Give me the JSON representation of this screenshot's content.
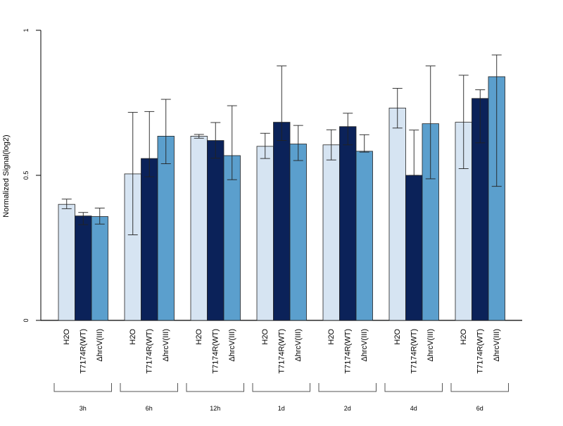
{
  "chart_data": {
    "type": "bar",
    "ylabel": "Normalized Signal(log2)",
    "ylim": [
      0,
      1
    ],
    "yticks": [
      {
        "value": 0,
        "label": "0"
      },
      {
        "value": 0.5,
        "label": "0.5"
      },
      {
        "value": 1,
        "label": "1"
      }
    ],
    "groups": [
      "3h",
      "6h",
      "12h",
      "1d",
      "2d",
      "4d",
      "6d"
    ],
    "series_labels": [
      "H2O",
      "T7174R(WT)",
      "ΔhrcV(III)"
    ],
    "colors": [
      "#d6e4f2",
      "#0b2259",
      "#5b9fcd"
    ],
    "series": [
      {
        "values": [
          0.4,
          0.505,
          0.635,
          0.6,
          0.605,
          0.732,
          0.683
        ],
        "err_low": [
          0.385,
          0.295,
          0.628,
          0.558,
          0.553,
          0.663,
          0.523
        ],
        "err_high": [
          0.418,
          0.717,
          0.641,
          0.645,
          0.657,
          0.8,
          0.845
        ]
      },
      {
        "values": [
          0.36,
          0.558,
          0.62,
          0.683,
          0.668,
          0.5,
          0.765
        ],
        "err_low": [
          0.33,
          0.495,
          0.559,
          0.62,
          0.605,
          0.5,
          0.612
        ],
        "err_high": [
          0.372,
          0.72,
          0.682,
          0.877,
          0.714,
          0.656,
          0.795
        ]
      },
      {
        "values": [
          0.358,
          0.635,
          0.568,
          0.608,
          0.583,
          0.678,
          0.84
        ],
        "err_low": [
          0.332,
          0.54,
          0.485,
          0.551,
          0.58,
          0.488,
          0.462
        ],
        "err_high": [
          0.387,
          0.762,
          0.74,
          0.672,
          0.64,
          0.877,
          0.915
        ]
      }
    ]
  }
}
